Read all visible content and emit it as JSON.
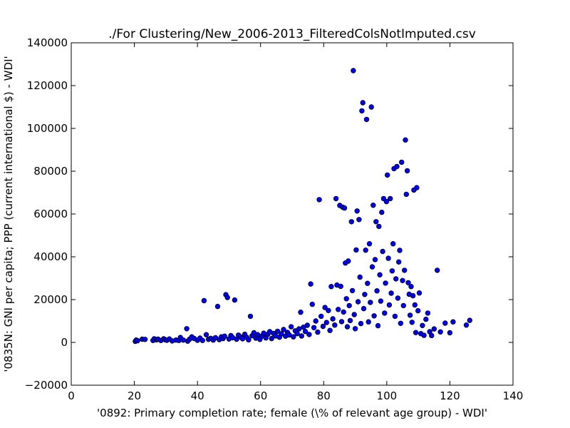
{
  "chart_data": {
    "type": "scatter",
    "title": "./For Clustering/New_2006-2013_FilteredColsNotImputed.csv",
    "xlabel": "'0892: Primary completion rate; female  (\\% of relevant age group) - WDI'",
    "ylabel": "'0835N: GNI per capita; PPP  (current international $) - WDI'",
    "xlim": [
      0,
      140
    ],
    "ylim": [
      -20000,
      140000
    ],
    "xticks": [
      "0",
      "20",
      "40",
      "60",
      "80",
      "100",
      "120",
      "140"
    ],
    "yticks": [
      "−20000",
      "0",
      "20000",
      "40000",
      "60000",
      "80000",
      "100000",
      "120000",
      "140000"
    ],
    "grid": false,
    "marker_color": "#0000ff",
    "marker_edge_color": "#000000",
    "series": [
      {
        "points": [
          [
            20.3,
            500
          ],
          [
            20.6,
            1100
          ],
          [
            21.0,
            800
          ],
          [
            22.5,
            1500
          ],
          [
            23.4,
            1400
          ],
          [
            25.9,
            900
          ],
          [
            26.3,
            1700
          ],
          [
            27.0,
            1200
          ],
          [
            27.5,
            1500
          ],
          [
            28.4,
            900
          ],
          [
            29.3,
            1700
          ],
          [
            29.8,
            1200
          ],
          [
            30.3,
            1000
          ],
          [
            31.1,
            1600
          ],
          [
            32.0,
            700
          ],
          [
            33.2,
            1100
          ],
          [
            34.1,
            900
          ],
          [
            34.6,
            2300
          ],
          [
            35.5,
            1100
          ],
          [
            36.6,
            6400
          ],
          [
            36.9,
            600
          ],
          [
            37.5,
            1500
          ],
          [
            38.2,
            2600
          ],
          [
            39.0,
            1800
          ],
          [
            40.0,
            1000
          ],
          [
            40.8,
            2000
          ],
          [
            41.6,
            900
          ],
          [
            42.1,
            19500
          ],
          [
            42.8,
            3600
          ],
          [
            43.5,
            1400
          ],
          [
            44.2,
            1900
          ],
          [
            45.0,
            1100
          ],
          [
            45.7,
            2200
          ],
          [
            46.4,
            16800
          ],
          [
            46.9,
            1300
          ],
          [
            47.6,
            2600
          ],
          [
            48.1,
            1800
          ],
          [
            48.6,
            2900
          ],
          [
            49.0,
            22300
          ],
          [
            49.5,
            21000
          ],
          [
            50.0,
            1600
          ],
          [
            50.6,
            3200
          ],
          [
            51.2,
            2200
          ],
          [
            51.8,
            19800
          ],
          [
            52.4,
            1500
          ],
          [
            53.0,
            3400
          ],
          [
            53.7,
            2500
          ],
          [
            54.3,
            1700
          ],
          [
            55.0,
            3800
          ],
          [
            55.6,
            2400
          ],
          [
            56.2,
            1200
          ],
          [
            56.8,
            12200
          ],
          [
            57.3,
            3100
          ],
          [
            57.9,
            4500
          ],
          [
            58.5,
            2000
          ],
          [
            59.1,
            3600
          ],
          [
            59.8,
            1400
          ],
          [
            60.4,
            2900
          ],
          [
            61.0,
            4300
          ],
          [
            61.7,
            2100
          ],
          [
            62.3,
            3800
          ],
          [
            62.9,
            5000
          ],
          [
            63.5,
            1800
          ],
          [
            64.1,
            4200
          ],
          [
            64.8,
            3000
          ],
          [
            65.4,
            5200
          ],
          [
            66.0,
            2400
          ],
          [
            66.6,
            4000
          ],
          [
            67.3,
            6000
          ],
          [
            67.9,
            2900
          ],
          [
            68.5,
            4700
          ],
          [
            69.1,
            3500
          ],
          [
            69.7,
            7300
          ],
          [
            70.4,
            2600
          ],
          [
            71.0,
            5400
          ],
          [
            71.6,
            4100
          ],
          [
            72.2,
            6300
          ],
          [
            72.7,
            14100
          ],
          [
            73.0,
            3000
          ],
          [
            73.6,
            7100
          ],
          [
            74.2,
            5100
          ],
          [
            74.8,
            8000
          ],
          [
            75.4,
            3700
          ],
          [
            75.9,
            27300
          ],
          [
            76.4,
            17800
          ],
          [
            76.9,
            6900
          ],
          [
            77.5,
            10000
          ],
          [
            78.1,
            4800
          ],
          [
            78.6,
            66700
          ],
          [
            79.2,
            12200
          ],
          [
            79.8,
            7500
          ],
          [
            80.4,
            16300
          ],
          [
            80.9,
            9300
          ],
          [
            81.5,
            14900
          ],
          [
            82.0,
            5600
          ],
          [
            82.4,
            26100
          ],
          [
            82.9,
            11000
          ],
          [
            83.5,
            8100
          ],
          [
            83.9,
            67200
          ],
          [
            84.2,
            26800
          ],
          [
            84.6,
            15400
          ],
          [
            85.1,
            64000
          ],
          [
            85.4,
            26200
          ],
          [
            85.7,
            9700
          ],
          [
            86.0,
            63200
          ],
          [
            86.3,
            14200
          ],
          [
            86.6,
            62800
          ],
          [
            86.9,
            37100
          ],
          [
            87.2,
            20400
          ],
          [
            87.5,
            7300
          ],
          [
            87.8,
            38000
          ],
          [
            88.1,
            17200
          ],
          [
            88.4,
            10200
          ],
          [
            88.8,
            56400
          ],
          [
            89.1,
            24200
          ],
          [
            89.4,
            127000
          ],
          [
            89.7,
            13000
          ],
          [
            90.0,
            6400
          ],
          [
            90.3,
            43200
          ],
          [
            90.6,
            61400
          ],
          [
            90.9,
            19000
          ],
          [
            91.2,
            57400
          ],
          [
            91.5,
            30500
          ],
          [
            91.8,
            8800
          ],
          [
            92.1,
            108200
          ],
          [
            92.4,
            112000
          ],
          [
            92.7,
            15800
          ],
          [
            93.0,
            22400
          ],
          [
            93.3,
            43100
          ],
          [
            93.6,
            104200
          ],
          [
            93.9,
            27600
          ],
          [
            94.2,
            9600
          ],
          [
            94.5,
            46100
          ],
          [
            94.8,
            18700
          ],
          [
            95.1,
            110000
          ],
          [
            95.4,
            35300
          ],
          [
            95.7,
            64100
          ],
          [
            96.0,
            12400
          ],
          [
            96.3,
            38700
          ],
          [
            96.6,
            56400
          ],
          [
            96.9,
            24100
          ],
          [
            97.2,
            7800
          ],
          [
            97.5,
            54200
          ],
          [
            97.8,
            31600
          ],
          [
            98.1,
            19300
          ],
          [
            98.4,
            60800
          ],
          [
            98.7,
            42500
          ],
          [
            99.0,
            67200
          ],
          [
            99.3,
            13700
          ],
          [
            99.6,
            27700
          ],
          [
            99.9,
            65800
          ],
          [
            100.2,
            78200
          ],
          [
            100.5,
            39300
          ],
          [
            100.8,
            17500
          ],
          [
            101.1,
            67200
          ],
          [
            101.4,
            23000
          ],
          [
            101.7,
            33400
          ],
          [
            102.0,
            46100
          ],
          [
            102.3,
            81200
          ],
          [
            102.6,
            12200
          ],
          [
            102.9,
            29700
          ],
          [
            103.2,
            82200
          ],
          [
            103.5,
            20700
          ],
          [
            103.8,
            37600
          ],
          [
            104.1,
            43000
          ],
          [
            104.4,
            8900
          ],
          [
            104.7,
            84200
          ],
          [
            105.0,
            28900
          ],
          [
            105.3,
            17200
          ],
          [
            105.6,
            33700
          ],
          [
            105.9,
            94600
          ],
          [
            106.2,
            69200
          ],
          [
            106.5,
            80200
          ],
          [
            106.8,
            27900
          ],
          [
            107.1,
            22500
          ],
          [
            107.4,
            12700
          ],
          [
            107.7,
            26100
          ],
          [
            108.0,
            9400
          ],
          [
            108.3,
            21800
          ],
          [
            108.6,
            71200
          ],
          [
            108.9,
            17500
          ],
          [
            109.2,
            4600
          ],
          [
            109.5,
            72300
          ],
          [
            109.9,
            14800
          ],
          [
            110.3,
            23100
          ],
          [
            110.8,
            4100
          ],
          [
            111.3,
            7900
          ],
          [
            111.8,
            3300
          ],
          [
            112.4,
            10800
          ],
          [
            113.0,
            13700
          ],
          [
            113.6,
            5000
          ],
          [
            114.2,
            3200
          ],
          [
            115.0,
            6300
          ],
          [
            116.0,
            33700
          ],
          [
            117.0,
            4900
          ],
          [
            118.5,
            9000
          ],
          [
            120.0,
            4500
          ],
          [
            121.0,
            9600
          ],
          [
            125.2,
            8100
          ],
          [
            126.3,
            10300
          ]
        ]
      }
    ]
  }
}
